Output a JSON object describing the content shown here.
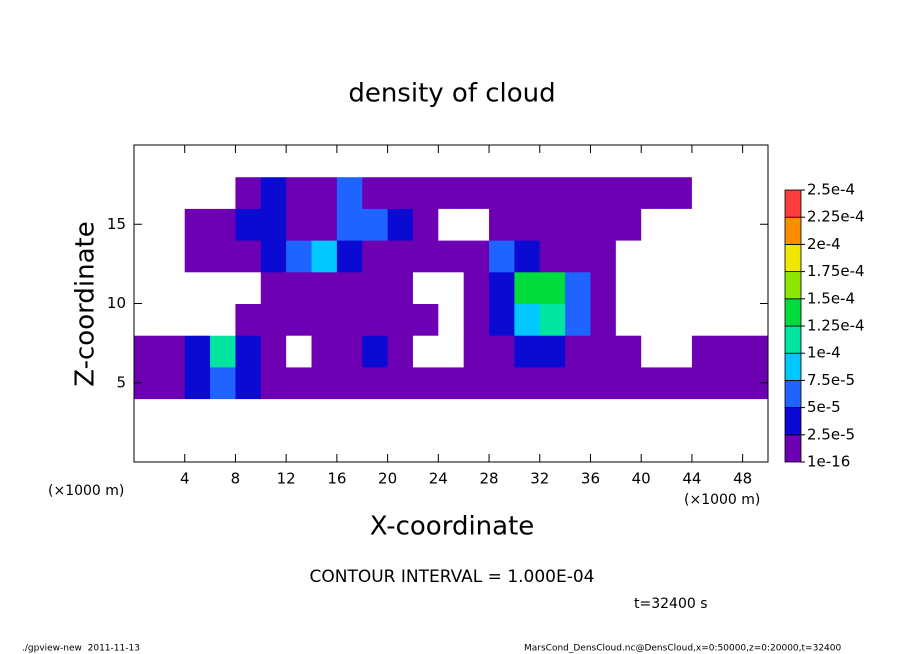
{
  "chart_data": {
    "type": "heatmap",
    "title": "density of cloud",
    "xlabel": "X-coordinate",
    "ylabel": "Z-coordinate",
    "x_unit": "(×1000 m)",
    "y_unit": "(×1000 m)",
    "annotation": "CONTOUR INTERVAL = 1.000E-04",
    "time_label": "t=32400 s",
    "footer_left": "./gpview-new  2011-11-13",
    "footer_right": "MarsCond_DensCloud.nc@DensCloud,x=0:50000,z=0:20000,t=32400",
    "xlim": [
      0,
      50
    ],
    "ylim": [
      0,
      20
    ],
    "xticks": [
      4,
      8,
      12,
      16,
      20,
      24,
      28,
      32,
      36,
      40,
      44,
      48
    ],
    "yticks": [
      5,
      10,
      15
    ],
    "x": [
      1,
      3,
      5,
      7,
      9,
      11,
      13,
      15,
      17,
      19,
      21,
      23,
      25,
      27,
      29,
      31,
      33,
      35,
      37,
      39,
      41,
      43,
      45,
      47,
      49
    ],
    "z": [
      1,
      3,
      5,
      7,
      9,
      11,
      13,
      15,
      17,
      19
    ],
    "values": [
      [
        0,
        0,
        0,
        0,
        0,
        0,
        0,
        0,
        0,
        0,
        0,
        0,
        0,
        0,
        0,
        0,
        0,
        0,
        0,
        0,
        0,
        0,
        0,
        0,
        0
      ],
      [
        0,
        0,
        0,
        0,
        0,
        0,
        0,
        0,
        0,
        0,
        0,
        0,
        0,
        0,
        0,
        0,
        0,
        0,
        0,
        0,
        0,
        0,
        0,
        0,
        0
      ],
      [
        1e-05,
        1e-05,
        3e-05,
        6e-05,
        3e-05,
        1e-05,
        1e-05,
        1e-05,
        1e-05,
        1e-05,
        1e-05,
        1e-05,
        1e-05,
        1e-05,
        1e-05,
        2e-05,
        1e-05,
        1e-05,
        1e-05,
        1e-05,
        1e-05,
        1e-05,
        1e-05,
        1e-05,
        1e-05
      ],
      [
        1e-05,
        1e-05,
        4e-05,
        0.00011,
        4e-05,
        1e-05,
        0,
        1e-05,
        1e-05,
        3e-05,
        1e-05,
        0,
        0,
        1e-05,
        1e-05,
        3e-05,
        3e-05,
        1e-05,
        1e-05,
        1e-05,
        0,
        0,
        1e-05,
        1e-05,
        2e-05
      ],
      [
        0,
        0,
        0,
        0,
        1e-05,
        1e-05,
        1e-05,
        1e-05,
        1e-05,
        1e-05,
        1e-05,
        1e-05,
        0,
        1e-05,
        3e-05,
        9e-05,
        0.00012,
        6e-05,
        1e-05,
        0,
        0,
        0,
        0,
        0,
        0
      ],
      [
        0,
        0,
        0,
        0,
        0,
        1e-05,
        1e-05,
        2e-05,
        1e-05,
        1e-05,
        1e-05,
        0,
        0,
        1e-05,
        4e-05,
        0.00013,
        0.00014,
        7e-05,
        1e-05,
        0,
        0,
        0,
        0,
        0,
        0
      ],
      [
        0,
        0,
        1e-05,
        1e-05,
        1e-05,
        3e-05,
        7e-05,
        8e-05,
        3e-05,
        1e-05,
        1e-05,
        1e-05,
        1e-05,
        1e-05,
        5e-05,
        4e-05,
        1e-05,
        1e-05,
        1e-05,
        0,
        0,
        0,
        0,
        0,
        0
      ],
      [
        0,
        0,
        1e-05,
        1e-05,
        3e-05,
        4e-05,
        2e-05,
        2e-05,
        6e-05,
        7e-05,
        3e-05,
        1e-05,
        0,
        0,
        1e-05,
        1e-05,
        1e-05,
        1e-05,
        1e-05,
        1e-05,
        0,
        0,
        0,
        0,
        0
      ],
      [
        0,
        0,
        0,
        0,
        1e-05,
        3e-05,
        1e-05,
        1e-05,
        5e-05,
        2e-05,
        1e-05,
        1e-05,
        1e-05,
        1e-05,
        1e-05,
        1e-05,
        1e-05,
        1e-05,
        1e-05,
        1e-05,
        1e-05,
        1e-05,
        0,
        0,
        0
      ],
      [
        0,
        0,
        0,
        0,
        0,
        0,
        0,
        0,
        0,
        0,
        0,
        0,
        0,
        0,
        0,
        0,
        0,
        0,
        0,
        0,
        0,
        0,
        0,
        0,
        0
      ]
    ],
    "levels": [
      {
        "value": 1e-16,
        "label": "1e-16"
      },
      {
        "value": 2.5e-05,
        "label": "2.5e-5"
      },
      {
        "value": 5e-05,
        "label": "5e-5"
      },
      {
        "value": 7.5e-05,
        "label": "7.5e-5"
      },
      {
        "value": 0.0001,
        "label": "1e-4"
      },
      {
        "value": 0.000125,
        "label": "1.25e-4"
      },
      {
        "value": 0.00015,
        "label": "1.5e-4"
      },
      {
        "value": 0.000175,
        "label": "1.75e-4"
      },
      {
        "value": 0.0002,
        "label": "2e-4"
      },
      {
        "value": 0.000225,
        "label": "2.25e-4"
      },
      {
        "value": 0.00025,
        "label": "2.5e-4"
      }
    ],
    "colors": [
      "#6e00b4",
      "#0a0ad2",
      "#2064ff",
      "#00c8ff",
      "#00e6a0",
      "#00dc3c",
      "#8ce600",
      "#f0e600",
      "#ff8c00",
      "#ff3c3c"
    ]
  }
}
